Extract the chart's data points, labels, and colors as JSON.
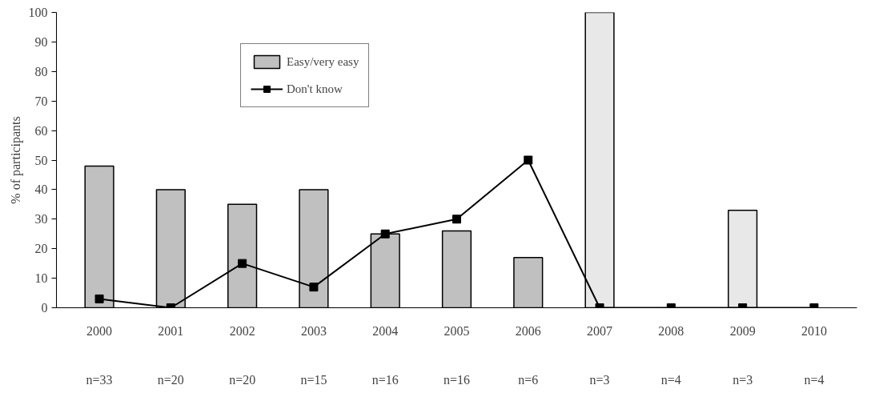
{
  "chart_data": {
    "type": "bar",
    "ylabel": "% of participants",
    "categories": [
      "2000",
      "2001",
      "2002",
      "2003",
      "2004",
      "2005",
      "2006",
      "2007",
      "2008",
      "2009",
      "2010"
    ],
    "series": [
      {
        "name": "Easy/very easy",
        "colors": [
          "#c0c0c0",
          "#c0c0c0",
          "#c0c0c0",
          "#c0c0c0",
          "#c0c0c0",
          "#c0c0c0",
          "#c0c0c0",
          "#e8e8e8",
          "#e8e8e8",
          "#e8e8e8",
          "#e8e8e8"
        ],
        "values": [
          48,
          40,
          35,
          40,
          25,
          26,
          17,
          100,
          0,
          33,
          0
        ]
      },
      {
        "name": "Don't know",
        "type": "line",
        "color": "#000000",
        "marker": "square",
        "values": [
          3,
          0,
          15,
          7,
          25,
          30,
          50,
          0,
          0,
          0,
          0
        ]
      }
    ],
    "annotations": [
      "n=33",
      "n=20",
      "n=20",
      "n=15",
      "n=16",
      "n=16",
      "n=6",
      "n=3",
      "n=4",
      "n=3",
      "n=4"
    ],
    "ylim": [
      0,
      100
    ],
    "yticks": [
      0,
      10,
      20,
      30,
      40,
      50,
      60,
      70,
      80,
      90,
      100
    ],
    "grid": false,
    "legend": "top left"
  }
}
